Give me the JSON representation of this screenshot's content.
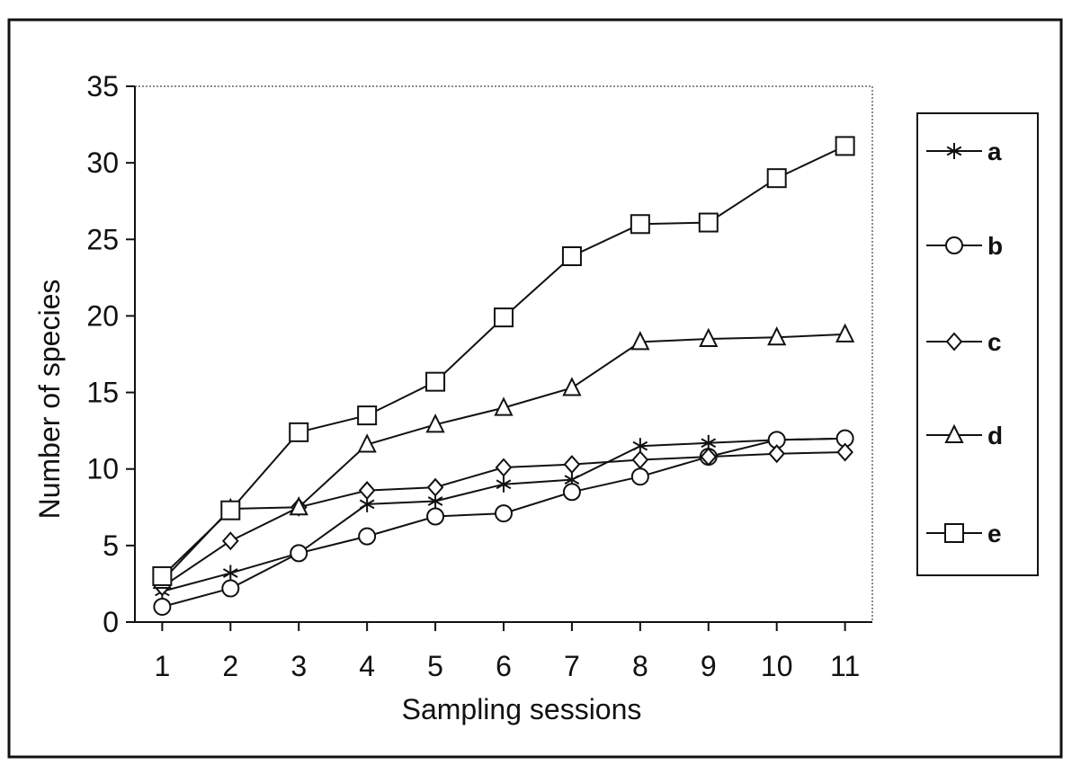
{
  "chart_data": {
    "type": "line",
    "xlabel": "Sampling sessions",
    "ylabel": "Number of species",
    "x": [
      1,
      2,
      3,
      4,
      5,
      6,
      7,
      8,
      9,
      10,
      11
    ],
    "xlim": [
      0.6,
      11.4
    ],
    "ylim": [
      0,
      35
    ],
    "yticks": [
      0,
      5,
      10,
      15,
      20,
      25,
      30,
      35
    ],
    "xticks": [
      1,
      2,
      3,
      4,
      5,
      6,
      7,
      8,
      9,
      10,
      11
    ],
    "grid": false,
    "legend_position": "right",
    "series": [
      {
        "name": "a",
        "marker": "asterisk",
        "values": [
          2,
          3.2,
          4.5,
          7.7,
          7.9,
          9,
          9.3,
          11.5,
          11.7,
          11.9,
          12
        ]
      },
      {
        "name": "b",
        "marker": "circle",
        "values": [
          1,
          2.2,
          4.5,
          5.6,
          6.9,
          7.1,
          8.5,
          9.5,
          10.8,
          11.9,
          12
        ]
      },
      {
        "name": "c",
        "marker": "diamond",
        "values": [
          2.3,
          5.3,
          7.5,
          8.6,
          8.8,
          10.1,
          10.3,
          10.6,
          10.8,
          11,
          11.1
        ]
      },
      {
        "name": "d",
        "marker": "triangle",
        "values": [
          2.7,
          7.4,
          7.5,
          11.6,
          12.9,
          14,
          15.3,
          18.3,
          18.5,
          18.6,
          18.8
        ]
      },
      {
        "name": "e",
        "marker": "square",
        "values": [
          3,
          7.3,
          12.4,
          13.5,
          15.7,
          19.9,
          23.9,
          26,
          26.1,
          29,
          31.1
        ]
      }
    ]
  }
}
